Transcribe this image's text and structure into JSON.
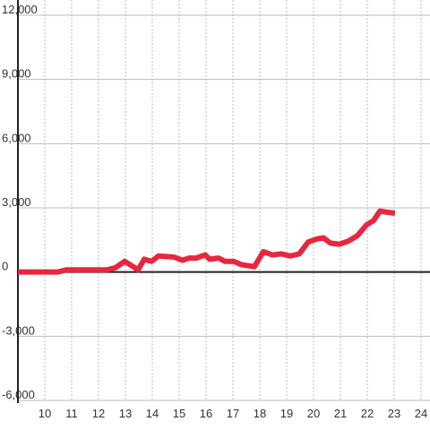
{
  "chart_data": {
    "type": "line",
    "x": [
      9.0,
      10.47,
      10.8,
      12.3,
      12.63,
      12.97,
      13.23,
      13.47,
      13.7,
      13.97,
      14.23,
      14.8,
      15.13,
      15.37,
      15.63,
      15.97,
      16.13,
      16.47,
      16.7,
      17.03,
      17.3,
      17.8,
      18.13,
      18.47,
      18.8,
      19.13,
      19.47,
      19.8,
      20.13,
      20.37,
      20.63,
      20.97,
      21.3,
      21.63,
      21.97,
      22.23,
      22.47,
      22.7,
      23.03
    ],
    "series": [
      {
        "color": "#e8263e",
        "values": [
          0,
          0,
          100,
          100,
          200,
          500,
          300,
          100,
          600,
          500,
          750,
          700,
          550,
          650,
          650,
          800,
          600,
          650,
          500,
          500,
          350,
          250,
          950,
          800,
          850,
          750,
          850,
          1400,
          1550,
          1600,
          1350,
          1300,
          1450,
          1700,
          2200,
          2400,
          2850,
          2800,
          2750
        ]
      }
    ],
    "xlim": [
      9,
      24.3
    ],
    "xticks": [
      10,
      11,
      12,
      13,
      14,
      15,
      16,
      17,
      18,
      19,
      20,
      21,
      22,
      23,
      24
    ],
    "ylim": [
      -6000,
      12000
    ],
    "yticks": [
      {
        "value": -6000,
        "label": "-6,000"
      },
      {
        "value": -3000,
        "label": "-3,000"
      },
      0,
      {
        "value": 3000,
        "label": "3,000"
      },
      {
        "value": 6000,
        "label": "6,000"
      },
      {
        "value": 9000,
        "label": "9,000"
      },
      {
        "value": 12000,
        "label": "12,000"
      }
    ],
    "grid": true
  }
}
